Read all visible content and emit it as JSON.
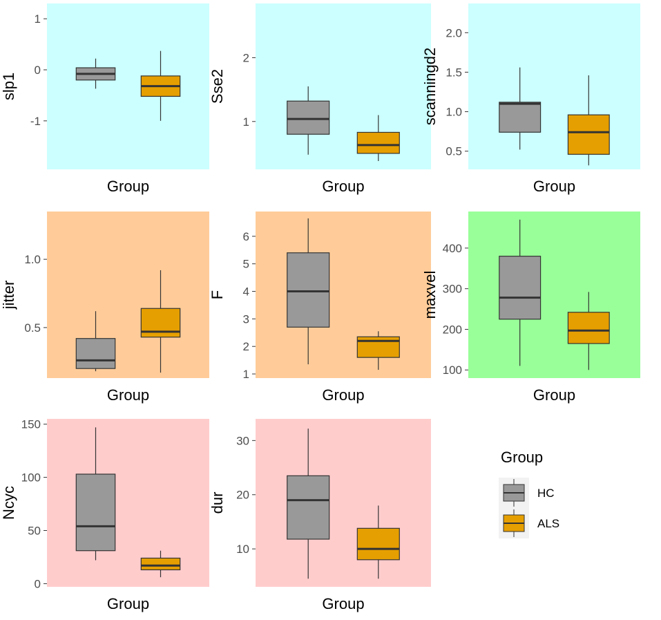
{
  "colors": {
    "hc_fill": "#999999",
    "als_fill": "#E69F00",
    "box_stroke": "#333333",
    "bg_cyan": "#CCFFFF",
    "bg_orange": "#FFCC99",
    "bg_green": "#99FF99",
    "bg_pink": "#FFCCCC"
  },
  "legend": {
    "title": "Group",
    "items": [
      {
        "label": "HC",
        "color": "#999999"
      },
      {
        "label": "ALS",
        "color": "#E69F00"
      }
    ]
  },
  "chart_data": [
    {
      "type": "boxplot",
      "xlabel": "Group",
      "ylabel": "slp1",
      "background": "#CCFFFF",
      "ylim": [
        -1.95,
        1.3
      ],
      "ticks": [
        -1,
        0,
        1
      ],
      "tick_labels": [
        "-1",
        "0",
        "1"
      ],
      "series": [
        {
          "name": "HC",
          "min": -0.37,
          "q1": -0.2,
          "median": -0.08,
          "q3": 0.04,
          "max": 0.22
        },
        {
          "name": "ALS",
          "min": -1.0,
          "q1": -0.52,
          "median": -0.32,
          "q3": -0.12,
          "max": 0.37
        }
      ]
    },
    {
      "type": "boxplot",
      "xlabel": "Group",
      "ylabel": "Sse2",
      "background": "#CCFFFF",
      "ylim": [
        0.25,
        2.85
      ],
      "ticks": [
        1,
        2
      ],
      "tick_labels": [
        "1",
        "2"
      ],
      "series": [
        {
          "name": "HC",
          "min": 0.48,
          "q1": 0.8,
          "median": 1.04,
          "q3": 1.32,
          "max": 1.55
        },
        {
          "name": "ALS",
          "min": 0.38,
          "q1": 0.5,
          "median": 0.63,
          "q3": 0.83,
          "max": 1.1
        }
      ]
    },
    {
      "type": "boxplot",
      "xlabel": "Group",
      "ylabel": "scanningd2",
      "background": "#CCFFFF",
      "ylim": [
        0.27,
        2.37
      ],
      "ticks": [
        0.5,
        1.0,
        1.5,
        2.0
      ],
      "tick_labels": [
        "0.5",
        "1.0",
        "1.5",
        "2.0"
      ],
      "series": [
        {
          "name": "HC",
          "min": 0.52,
          "q1": 0.74,
          "median": 1.1,
          "q3": 1.12,
          "max": 1.56
        },
        {
          "name": "ALS",
          "min": 0.32,
          "q1": 0.46,
          "median": 0.74,
          "q3": 0.96,
          "max": 1.46
        }
      ]
    },
    {
      "type": "boxplot",
      "xlabel": "Group",
      "ylabel": "jitter",
      "background": "#FFCC99",
      "ylim": [
        0.13,
        1.35
      ],
      "ticks": [
        0.5,
        1.0
      ],
      "tick_labels": [
        "0.5",
        "1.0"
      ],
      "series": [
        {
          "name": "HC",
          "min": 0.18,
          "q1": 0.2,
          "median": 0.26,
          "q3": 0.42,
          "max": 0.62
        },
        {
          "name": "ALS",
          "min": 0.17,
          "q1": 0.43,
          "median": 0.47,
          "q3": 0.64,
          "max": 0.92
        }
      ]
    },
    {
      "type": "boxplot",
      "xlabel": "Group",
      "ylabel": "F",
      "background": "#FFCC99",
      "ylim": [
        0.85,
        6.9
      ],
      "ticks": [
        1,
        2,
        3,
        4,
        5,
        6
      ],
      "tick_labels": [
        "1",
        "2",
        "3",
        "4",
        "5",
        "6"
      ],
      "series": [
        {
          "name": "HC",
          "min": 1.35,
          "q1": 2.7,
          "median": 4.0,
          "q3": 5.4,
          "max": 6.65
        },
        {
          "name": "ALS",
          "min": 1.15,
          "q1": 1.6,
          "median": 2.2,
          "q3": 2.35,
          "max": 2.55
        }
      ]
    },
    {
      "type": "boxplot",
      "xlabel": "Group",
      "ylabel": "maxvel",
      "background": "#99FF99",
      "ylim": [
        80,
        490
      ],
      "ticks": [
        100,
        200,
        300,
        400
      ],
      "tick_labels": [
        "100",
        "200",
        "300",
        "400"
      ],
      "series": [
        {
          "name": "HC",
          "min": 110,
          "q1": 225,
          "median": 278,
          "q3": 380,
          "max": 470
        },
        {
          "name": "ALS",
          "min": 100,
          "q1": 165,
          "median": 197,
          "q3": 242,
          "max": 292
        }
      ]
    },
    {
      "type": "boxplot",
      "xlabel": "Group",
      "ylabel": "Ncyc",
      "background": "#FFCCCC",
      "ylim": [
        -3,
        155
      ],
      "ticks": [
        0,
        50,
        100,
        150
      ],
      "tick_labels": [
        "0",
        "50",
        "100",
        "150"
      ],
      "series": [
        {
          "name": "HC",
          "min": 22,
          "q1": 31,
          "median": 54,
          "q3": 103,
          "max": 147
        },
        {
          "name": "ALS",
          "min": 6,
          "q1": 13,
          "median": 17,
          "q3": 24,
          "max": 31
        }
      ]
    },
    {
      "type": "boxplot",
      "xlabel": "Group",
      "ylabel": "dur",
      "background": "#FFCCCC",
      "ylim": [
        3,
        34
      ],
      "ticks": [
        10,
        20,
        30
      ],
      "tick_labels": [
        "10",
        "20",
        "30"
      ],
      "series": [
        {
          "name": "HC",
          "min": 4.5,
          "q1": 11.8,
          "median": 19.0,
          "q3": 23.5,
          "max": 32.2
        },
        {
          "name": "ALS",
          "min": 4.5,
          "q1": 8.0,
          "median": 10.0,
          "q3": 13.8,
          "max": 18.0
        }
      ]
    }
  ]
}
